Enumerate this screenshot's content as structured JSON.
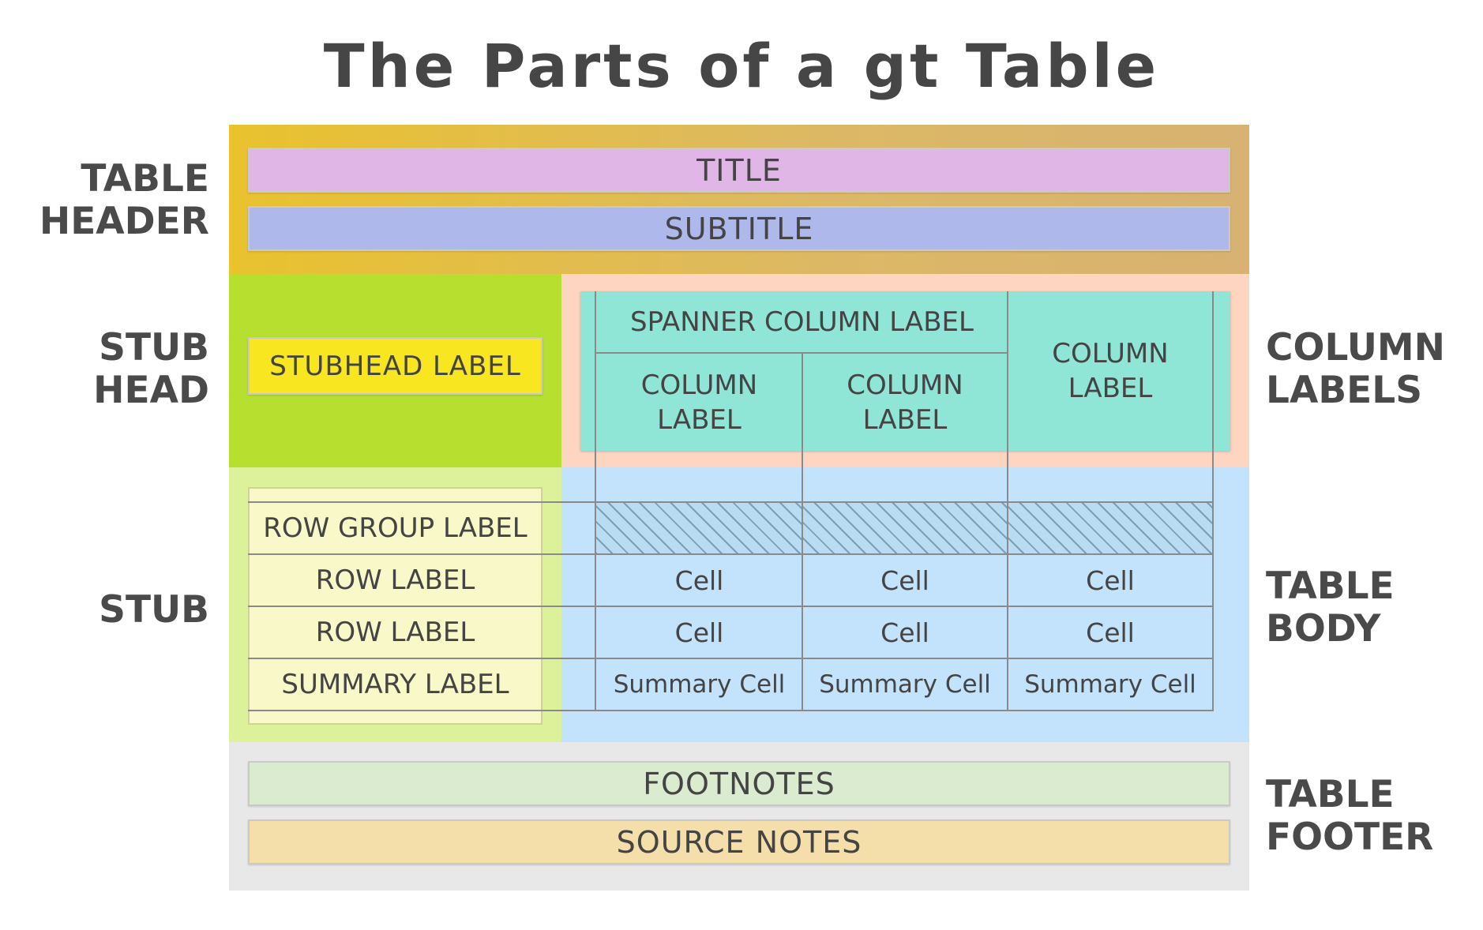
{
  "title": "The Parts of a gt Table",
  "side_labels": {
    "table_header": [
      "TABLE",
      "HEADER"
    ],
    "stub_head": [
      "STUB",
      "HEAD"
    ],
    "stub": [
      "STUB"
    ],
    "column_labels": [
      "COLUMN",
      "LABELS"
    ],
    "table_body": [
      "TABLE",
      "BODY"
    ],
    "table_footer": [
      "TABLE",
      "FOOTER"
    ]
  },
  "header": {
    "title": "TITLE",
    "subtitle": "SUBTITLE"
  },
  "stubhead": {
    "label": "STUBHEAD LABEL"
  },
  "column_labels": {
    "spanner": "SPANNER COLUMN LABEL",
    "col1": [
      "COLUMN",
      "LABEL"
    ],
    "col2": [
      "COLUMN",
      "LABEL"
    ],
    "col3": [
      "COLUMN",
      "LABEL"
    ]
  },
  "stub": {
    "row_group_label": "ROW GROUP LABEL",
    "row_label_1": "ROW LABEL",
    "row_label_2": "ROW LABEL",
    "summary_label": "SUMMARY LABEL"
  },
  "body": {
    "rows": [
      [
        "Cell",
        "Cell",
        "Cell"
      ],
      [
        "Cell",
        "Cell",
        "Cell"
      ]
    ],
    "summary": [
      "Summary Cell",
      "Summary Cell",
      "Summary Cell"
    ]
  },
  "footer": {
    "footnotes": "FOOTNOTES",
    "source_notes": "SOURCE NOTES"
  },
  "colors": {
    "header_bg_start": "#e9c22e",
    "header_bg_end": "#d7b272",
    "title_bar": "#e0b6e6",
    "subtitle_bar": "#aeb8eb",
    "stubhead_bg": "#b7df2f",
    "stubhead_label": "#f7e620",
    "column_labels_bg": "#fdd5c0",
    "column_labels_box": "#8fe6d6",
    "stub_bg": "#ddf09a",
    "stub_labels": "#f9f8c8",
    "body_bg": "#c2e3fb",
    "footer_bg": "#e8e8e8",
    "footnotes_bar": "#dbebcf",
    "source_notes_bar": "#f4dfab"
  }
}
